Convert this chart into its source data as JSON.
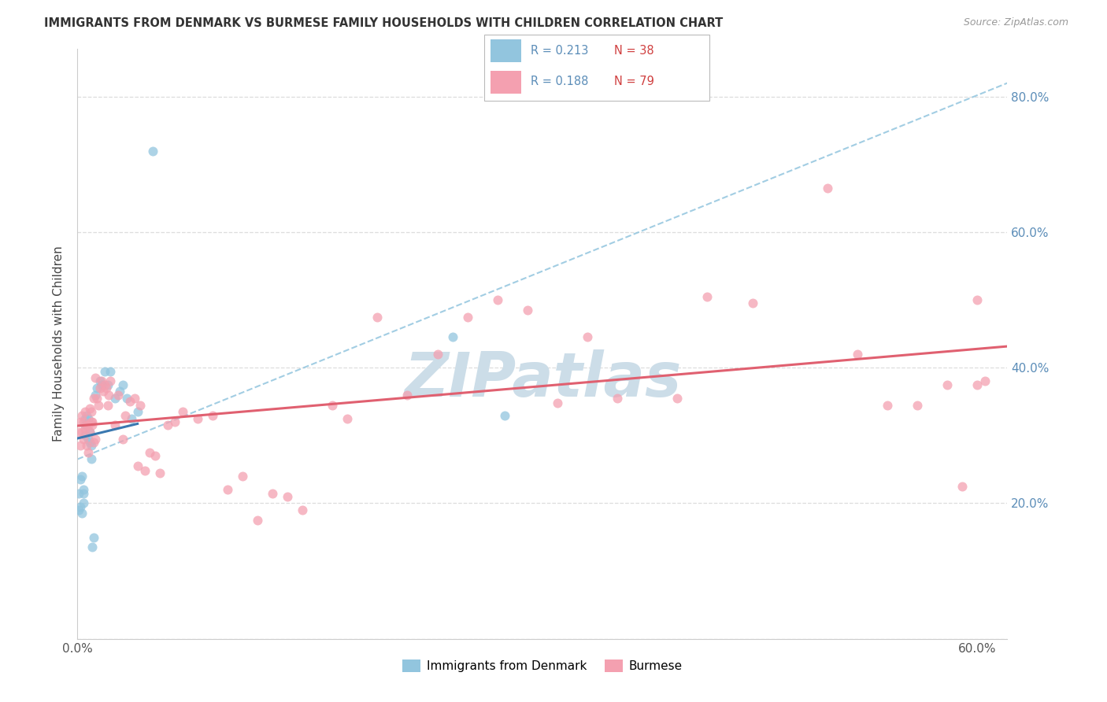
{
  "title": "IMMIGRANTS FROM DENMARK VS BURMESE FAMILY HOUSEHOLDS WITH CHILDREN CORRELATION CHART",
  "source": "Source: ZipAtlas.com",
  "ylabel": "Family Households with Children",
  "legend_label_1": "Immigrants from Denmark",
  "legend_label_2": "Burmese",
  "r1": "0.213",
  "n1": "38",
  "r2": "0.188",
  "n2": "79",
  "color_denmark": "#92C5DE",
  "color_burmese": "#F4A0B0",
  "color_denmark_line": "#3A78B0",
  "color_burmese_line": "#E06070",
  "color_axis_label": "#5B8DB8",
  "color_n_label": "#D04040",
  "xlim_low": 0.0,
  "xlim_high": 0.62,
  "ylim_low": 0.0,
  "ylim_high": 0.87,
  "yticks_right": [
    0.2,
    0.4,
    0.6,
    0.8
  ],
  "ytick_right_labels": [
    "20.0%",
    "40.0%",
    "60.0%",
    "80.0%"
  ],
  "watermark": "ZIPatlas",
  "watermark_color": "#CCDDE8",
  "denmark_x": [
    0.05,
    0.001,
    0.001,
    0.002,
    0.002,
    0.003,
    0.003,
    0.004,
    0.004,
    0.004,
    0.005,
    0.005,
    0.005,
    0.006,
    0.006,
    0.007,
    0.007,
    0.008,
    0.008,
    0.009,
    0.009,
    0.01,
    0.011,
    0.012,
    0.013,
    0.015,
    0.016,
    0.018,
    0.02,
    0.022,
    0.025,
    0.028,
    0.03,
    0.033,
    0.036,
    0.04,
    0.25,
    0.285
  ],
  "denmark_y": [
    0.72,
    0.19,
    0.215,
    0.195,
    0.235,
    0.185,
    0.24,
    0.2,
    0.215,
    0.22,
    0.3,
    0.315,
    0.325,
    0.315,
    0.33,
    0.295,
    0.325,
    0.29,
    0.305,
    0.265,
    0.285,
    0.135,
    0.15,
    0.36,
    0.37,
    0.38,
    0.375,
    0.395,
    0.375,
    0.395,
    0.355,
    0.365,
    0.375,
    0.355,
    0.325,
    0.335,
    0.445,
    0.33
  ],
  "burmese_x": [
    0.001,
    0.002,
    0.002,
    0.003,
    0.003,
    0.004,
    0.004,
    0.005,
    0.005,
    0.006,
    0.006,
    0.007,
    0.007,
    0.008,
    0.008,
    0.009,
    0.009,
    0.01,
    0.01,
    0.011,
    0.011,
    0.012,
    0.012,
    0.013,
    0.014,
    0.015,
    0.016,
    0.017,
    0.018,
    0.019,
    0.02,
    0.021,
    0.022,
    0.025,
    0.027,
    0.03,
    0.032,
    0.035,
    0.038,
    0.04,
    0.042,
    0.045,
    0.048,
    0.052,
    0.055,
    0.06,
    0.065,
    0.07,
    0.08,
    0.09,
    0.1,
    0.11,
    0.12,
    0.13,
    0.14,
    0.15,
    0.17,
    0.18,
    0.2,
    0.22,
    0.24,
    0.26,
    0.28,
    0.3,
    0.32,
    0.34,
    0.36,
    0.4,
    0.42,
    0.45,
    0.5,
    0.52,
    0.54,
    0.56,
    0.58,
    0.59,
    0.6,
    0.6,
    0.605
  ],
  "burmese_y": [
    0.305,
    0.285,
    0.32,
    0.305,
    0.33,
    0.295,
    0.32,
    0.335,
    0.31,
    0.285,
    0.315,
    0.275,
    0.315,
    0.305,
    0.34,
    0.32,
    0.335,
    0.32,
    0.315,
    0.29,
    0.355,
    0.295,
    0.385,
    0.355,
    0.345,
    0.37,
    0.38,
    0.365,
    0.375,
    0.37,
    0.345,
    0.36,
    0.38,
    0.315,
    0.36,
    0.295,
    0.33,
    0.35,
    0.355,
    0.255,
    0.345,
    0.248,
    0.275,
    0.27,
    0.245,
    0.315,
    0.32,
    0.335,
    0.325,
    0.33,
    0.22,
    0.24,
    0.175,
    0.215,
    0.21,
    0.19,
    0.345,
    0.325,
    0.475,
    0.36,
    0.42,
    0.475,
    0.5,
    0.485,
    0.348,
    0.445,
    0.355,
    0.355,
    0.505,
    0.495,
    0.665,
    0.42,
    0.345,
    0.345,
    0.375,
    0.225,
    0.5,
    0.375,
    0.38
  ]
}
